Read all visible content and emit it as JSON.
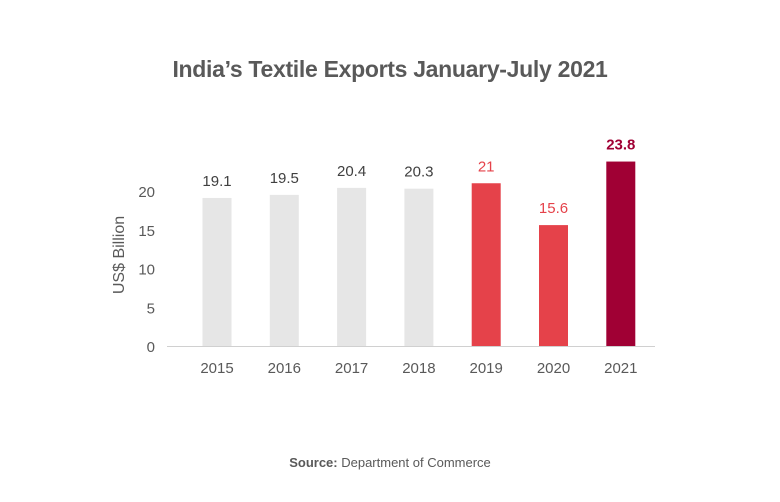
{
  "chart_data": {
    "type": "bar",
    "title": "India’s Textile Exports January-July 2021",
    "xlabel": "",
    "ylabel": "US$ Billion",
    "categories": [
      "2015",
      "2016",
      "2017",
      "2018",
      "2019",
      "2020",
      "2021"
    ],
    "values": [
      19.1,
      19.5,
      20.4,
      20.3,
      21,
      15.6,
      23.8
    ],
    "data_labels": [
      "19.1",
      "19.5",
      "20.4",
      "20.3",
      "21",
      "15.6",
      "23.8"
    ],
    "bar_colors": [
      "#e6e6e6",
      "#e6e6e6",
      "#e6e6e6",
      "#e6e6e6",
      "#e5424a",
      "#e5424a",
      "#a00034"
    ],
    "label_colors": [
      "#404040",
      "#404040",
      "#404040",
      "#404040",
      "#e5424a",
      "#e5424a",
      "#a00034"
    ],
    "yticks": [
      0,
      5,
      10,
      15,
      20
    ],
    "ylim": [
      0,
      25
    ],
    "grid": false
  },
  "source": {
    "label": "Source:",
    "text": " Department of Commerce"
  }
}
